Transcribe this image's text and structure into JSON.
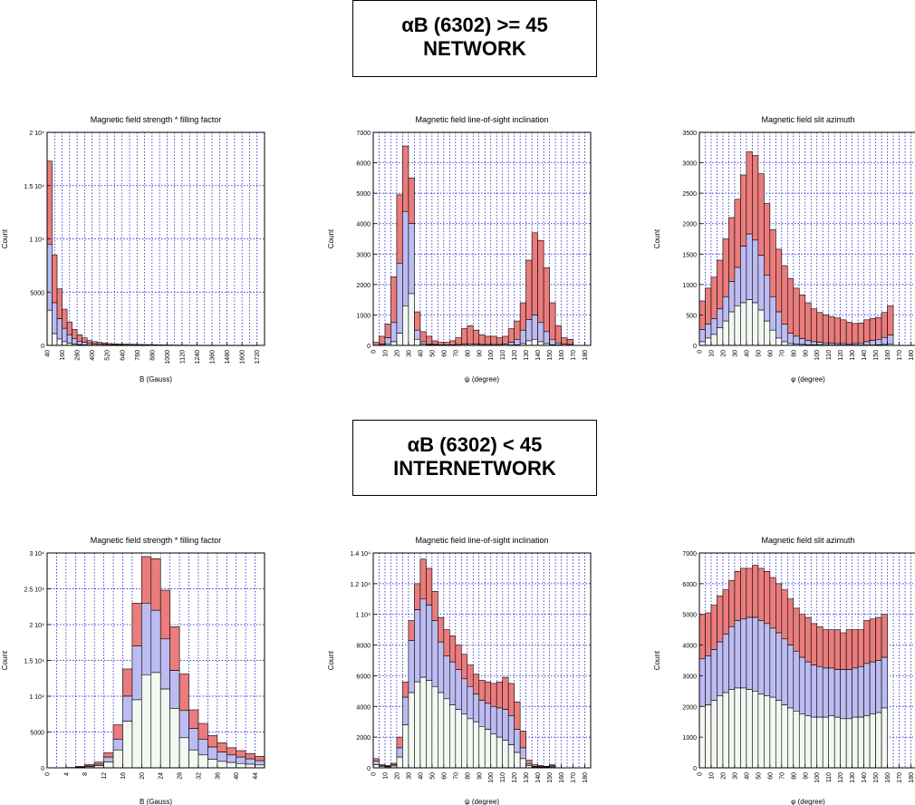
{
  "sections": [
    {
      "title_line1": "αB (6302) >= 45",
      "title_line2": "NETWORK"
    },
    {
      "title_line1": "αB (6302) < 45",
      "title_line2": "INTERNETWORK"
    }
  ],
  "colors": {
    "bottom": "#f4f8f2",
    "middle": "#bcbcf2",
    "top": "#ea7c7c",
    "grid": "#0000cc"
  },
  "chart_data": [
    {
      "type": "bar",
      "stacked": true,
      "title": "Magnetic field strength * filling factor",
      "xlabel": "B (Gauss)",
      "ylabel": "Count",
      "xlim": [
        40,
        1780
      ],
      "ylim": [
        0,
        20000
      ],
      "bin_width": 40,
      "x_ticks": [
        "40",
        "160",
        "280",
        "400",
        "520",
        "640",
        "760",
        "880",
        "1000",
        "1120",
        "1240",
        "1360",
        "1480",
        "1600",
        "1720"
      ],
      "y_ticks": [
        "0",
        "5000",
        "1 10⁴",
        "1.5 10⁴",
        "2 10⁴"
      ],
      "totals": [
        17300,
        8500,
        5300,
        3400,
        2200,
        1500,
        1000,
        700,
        450,
        350,
        280,
        220,
        180,
        150,
        130,
        120,
        110,
        100,
        90,
        80,
        70,
        60,
        50,
        45,
        40,
        35,
        30,
        25,
        22,
        20,
        18,
        15,
        12,
        10,
        8,
        6,
        5,
        4,
        3,
        2,
        1,
        1,
        0
      ],
      "mids": [
        9500,
        4000,
        2500,
        1600,
        1000,
        650,
        400,
        280,
        180,
        130,
        100,
        80,
        60,
        50,
        40,
        35,
        30,
        25,
        20,
        18,
        15,
        12,
        10,
        8,
        7,
        6,
        5,
        4,
        3,
        3,
        2,
        2,
        1,
        1,
        1,
        0,
        0,
        0,
        0,
        0,
        0,
        0,
        0
      ],
      "bots": [
        3300,
        1100,
        600,
        350,
        200,
        120,
        70,
        40,
        25,
        15,
        10,
        8,
        6,
        4,
        3,
        2,
        2,
        1,
        1,
        1,
        0,
        0,
        0,
        0,
        0,
        0,
        0,
        0,
        0,
        0,
        0,
        0,
        0,
        0,
        0,
        0,
        0,
        0,
        0,
        0,
        0,
        0,
        0
      ]
    },
    {
      "type": "bar",
      "stacked": true,
      "title": "Magnetic field line-of-sight inclination",
      "xlabel": "ψ (degree)",
      "ylabel": "Count",
      "xlim": [
        0,
        185
      ],
      "ylim": [
        0,
        7000
      ],
      "bin_width": 5,
      "x_ticks": [
        "0",
        "10",
        "20",
        "30",
        "40",
        "50",
        "60",
        "70",
        "80",
        "90",
        "100",
        "110",
        "120",
        "130",
        "140",
        "150",
        "160",
        "170",
        "180"
      ],
      "y_ticks": [
        "0",
        "1000",
        "2000",
        "3000",
        "4000",
        "5000",
        "6000",
        "7000"
      ],
      "totals": [
        100,
        300,
        700,
        2250,
        4950,
        6550,
        5500,
        1100,
        450,
        300,
        150,
        100,
        100,
        150,
        250,
        550,
        650,
        500,
        350,
        300,
        300,
        250,
        300,
        550,
        800,
        1400,
        2800,
        3700,
        3450,
        2550,
        1400,
        650,
        250,
        200
      ],
      "mids": [
        0,
        40,
        250,
        750,
        2700,
        4400,
        4000,
        500,
        120,
        50,
        30,
        20,
        20,
        20,
        30,
        40,
        50,
        40,
        30,
        30,
        30,
        30,
        40,
        100,
        200,
        500,
        850,
        1000,
        750,
        450,
        200,
        80,
        40,
        30
      ],
      "bots": [
        0,
        10,
        50,
        120,
        400,
        1300,
        1700,
        200,
        40,
        20,
        10,
        5,
        5,
        5,
        5,
        5,
        5,
        5,
        5,
        5,
        5,
        5,
        5,
        10,
        20,
        60,
        150,
        200,
        120,
        60,
        20,
        10,
        5,
        5
      ]
    },
    {
      "type": "bar",
      "stacked": true,
      "title": "Magnetic field slit azimuth",
      "xlabel": "φ (degree)",
      "ylabel": "Count",
      "xlim": [
        0,
        185
      ],
      "ylim": [
        0,
        3500
      ],
      "bin_width": 5,
      "x_ticks": [
        "0",
        "10",
        "20",
        "30",
        "40",
        "50",
        "60",
        "70",
        "80",
        "90",
        "100",
        "110",
        "120",
        "130",
        "140",
        "150",
        "160",
        "170",
        "180"
      ],
      "y_ticks": [
        "0",
        "500",
        "1000",
        "1500",
        "2000",
        "2500",
        "3000",
        "3500"
      ],
      "totals": [
        730,
        940,
        1120,
        1400,
        1750,
        2100,
        2400,
        2800,
        3180,
        3120,
        2820,
        2330,
        1900,
        1580,
        1310,
        1100,
        940,
        830,
        700,
        600,
        540,
        500,
        470,
        450,
        420,
        380,
        360,
        370,
        420,
        440,
        460,
        540,
        650
      ],
      "mids": [
        260,
        350,
        440,
        600,
        800,
        1050,
        1280,
        1630,
        1830,
        1730,
        1480,
        1150,
        800,
        550,
        350,
        200,
        150,
        110,
        80,
        60,
        50,
        40,
        35,
        30,
        30,
        25,
        30,
        40,
        60,
        80,
        100,
        130,
        170
      ],
      "bots": [
        60,
        120,
        180,
        290,
        400,
        550,
        650,
        700,
        750,
        700,
        580,
        400,
        250,
        120,
        60,
        30,
        20,
        15,
        10,
        10,
        8,
        6,
        5,
        5,
        5,
        5,
        5,
        5,
        5,
        5,
        10,
        15,
        25
      ]
    },
    {
      "type": "bar",
      "stacked": true,
      "title": "Magnetic field strength * filling factor",
      "xlabel": "B (Gauss)",
      "ylabel": "Count",
      "xlim": [
        0,
        46
      ],
      "ylim": [
        0,
        30000
      ],
      "bin_width": 2,
      "x_ticks": [
        "0",
        "4",
        "8",
        "12",
        "16",
        "20",
        "24",
        "28",
        "32",
        "36",
        "40",
        "44"
      ],
      "y_ticks": [
        "0",
        "5000",
        "1 10⁴",
        "1.5 10⁴",
        "2 10⁴",
        "2.5 10⁴",
        "3 10⁴"
      ],
      "totals": [
        0,
        0,
        50,
        200,
        450,
        800,
        2100,
        6000,
        13800,
        23000,
        29500,
        29200,
        24800,
        19700,
        13100,
        8100,
        6200,
        4500,
        3500,
        2800,
        2400,
        2000,
        1600
      ],
      "mids": [
        0,
        0,
        30,
        100,
        250,
        500,
        1500,
        4000,
        10000,
        17000,
        23000,
        22000,
        18000,
        13600,
        8000,
        5500,
        4000,
        2900,
        2200,
        1800,
        1500,
        1250,
        1000
      ],
      "bots": [
        0,
        0,
        20,
        50,
        150,
        300,
        800,
        2500,
        6500,
        9500,
        13000,
        13300,
        11000,
        8300,
        4200,
        2500,
        1800,
        1200,
        900,
        750,
        600,
        500,
        400
      ]
    },
    {
      "type": "bar",
      "stacked": true,
      "title": "Magnetic field line-of-sight inclination",
      "xlabel": "ψ (degree)",
      "ylabel": "Count",
      "xlim": [
        0,
        185
      ],
      "ylim": [
        0,
        14000
      ],
      "bin_width": 5,
      "x_ticks": [
        "0",
        "10",
        "20",
        "30",
        "40",
        "50",
        "60",
        "70",
        "80",
        "90",
        "100",
        "110",
        "120",
        "130",
        "140",
        "150",
        "160",
        "170",
        "180"
      ],
      "y_ticks": [
        "0",
        "2000",
        "4000",
        "6000",
        "8000",
        "1 10⁴",
        "1.2 10⁴",
        "1.4 10⁴"
      ],
      "totals": [
        600,
        200,
        150,
        300,
        2000,
        5600,
        9600,
        12000,
        13600,
        13000,
        11500,
        9800,
        9000,
        8600,
        8000,
        7400,
        6700,
        6100,
        5700,
        5600,
        5500,
        5600,
        5900,
        5500,
        4300,
        2400,
        500,
        200,
        150,
        100,
        200
      ],
      "mids": [
        450,
        150,
        100,
        200,
        1300,
        4600,
        8300,
        10300,
        11000,
        10600,
        9600,
        8200,
        7300,
        6900,
        6400,
        5800,
        5300,
        4800,
        4400,
        4200,
        4000,
        3900,
        3800,
        3400,
        2500,
        1300,
        250,
        100,
        80,
        60,
        120
      ],
      "bots": [
        200,
        100,
        60,
        120,
        700,
        2800,
        4900,
        5600,
        5900,
        5700,
        5300,
        4900,
        4500,
        4100,
        3800,
        3500,
        3200,
        3000,
        2700,
        2500,
        2200,
        2000,
        1800,
        1500,
        1000,
        600,
        150,
        50,
        40,
        30,
        60
      ]
    },
    {
      "type": "bar",
      "stacked": true,
      "title": "Magnetic field slit azimuth",
      "xlabel": "φ (degree)",
      "ylabel": "Count",
      "xlim": [
        0,
        185
      ],
      "ylim": [
        0,
        7000
      ],
      "bin_width": 5,
      "x_ticks": [
        "0",
        "10",
        "20",
        "30",
        "40",
        "50",
        "60",
        "70",
        "80",
        "90",
        "100",
        "110",
        "120",
        "130",
        "140",
        "150",
        "160",
        "170",
        "180"
      ],
      "y_ticks": [
        "0",
        "1000",
        "2000",
        "3000",
        "4000",
        "5000",
        "6000",
        "7000"
      ],
      "totals": [
        5000,
        5050,
        5300,
        5600,
        5800,
        6100,
        6400,
        6500,
        6500,
        6600,
        6500,
        6400,
        6200,
        6000,
        5800,
        5500,
        5200,
        5000,
        4900,
        4700,
        4600,
        4500,
        4500,
        4500,
        4400,
        4500,
        4500,
        4500,
        4800,
        4850,
        4900,
        5000
      ],
      "mids": [
        3550,
        3650,
        3850,
        4100,
        4350,
        4600,
        4800,
        4850,
        4900,
        4900,
        4800,
        4700,
        4550,
        4400,
        4200,
        4000,
        3800,
        3600,
        3450,
        3350,
        3300,
        3250,
        3250,
        3200,
        3200,
        3200,
        3250,
        3300,
        3400,
        3450,
        3500,
        3600
      ],
      "bots": [
        2000,
        2050,
        2200,
        2350,
        2450,
        2550,
        2600,
        2600,
        2550,
        2500,
        2400,
        2350,
        2300,
        2200,
        2050,
        1950,
        1850,
        1750,
        1700,
        1650,
        1650,
        1650,
        1700,
        1650,
        1600,
        1600,
        1650,
        1650,
        1700,
        1750,
        1800,
        1950
      ]
    }
  ]
}
